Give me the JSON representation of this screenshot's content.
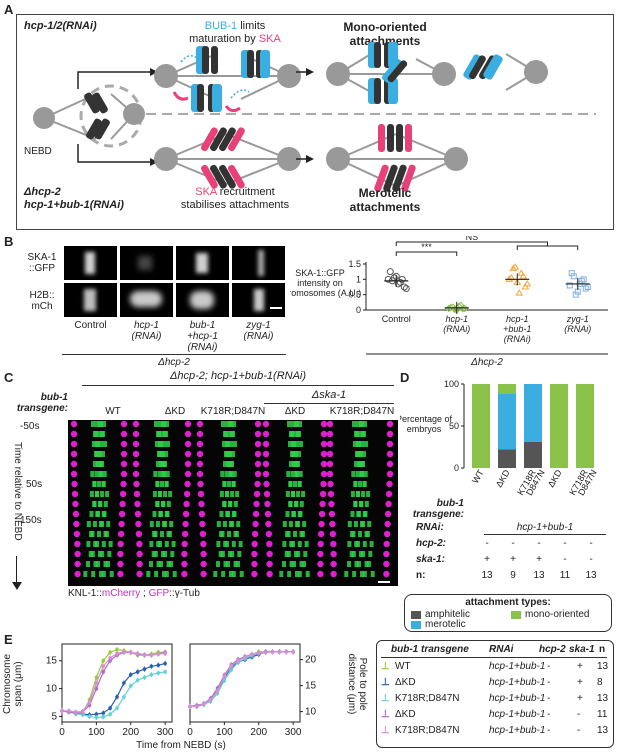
{
  "panelA": {
    "label": "A",
    "top_condition": "hcp-1/2(RNAi)",
    "bub1_prefix": "BUB-1",
    "bub1_rest": " limits",
    "maturation_prefix": "maturation by ",
    "ska_word": "SKA",
    "mono_title": "Mono-oriented\nattachments",
    "nebd": "NEBD",
    "bottom_condition_1": "Δhcp-2",
    "bottom_condition_2": "hcp-1+bub-1(RNAi)",
    "ska_recruit_rest": " recruitment",
    "stabilises": "stabilises attachments",
    "merotelic_title": "Merotelic\nattachments",
    "colors": {
      "blue": "#3aaee0",
      "pink": "#e8407a",
      "gray": "#8c8c8c",
      "dark": "#222222"
    }
  },
  "panelB": {
    "label": "B",
    "row_labels": [
      "SKA-1\n::GFP",
      "H2B::\nmCh"
    ],
    "columns": [
      "Control",
      "hcp-1\n(RNAi)",
      "bub-1\n+hcp-1\n(RNAi)",
      "zyg-1\n(RNAi)"
    ],
    "footer": "Δhcp-2",
    "sig": "***",
    "ns": "NS",
    "chart_data": {
      "type": "scatter",
      "ylabel": "SKA-1::GFP\nintensity on\nchromosomes (A.U.)",
      "ylim": [
        0,
        1.5
      ],
      "yticks": [
        "0",
        "0.5",
        "1",
        "1.5"
      ],
      "categories": [
        "Control",
        "hcp-1\n(RNAi)",
        "hcp-1\n+bub-1\n(RNAi)",
        "zyg-1\n(RNAi)"
      ],
      "series": [
        {
          "color": "#555555",
          "values": [
            1.0,
            0.95,
            1.1,
            0.9,
            0.75,
            1.25,
            1.05,
            0.85,
            1.0,
            0.7
          ],
          "mean": 0.95
        },
        {
          "color": "#8bc34a",
          "values": [
            0.05,
            0.1,
            0.0,
            0.15,
            0.05,
            0.08,
            0.02,
            0.12,
            0.04
          ],
          "mean": 0.07
        },
        {
          "color": "#f2a83b",
          "values": [
            1.0,
            1.35,
            0.9,
            1.2,
            0.75,
            1.05,
            1.4,
            0.55,
            1.1,
            0.85
          ],
          "mean": 1.0
        },
        {
          "color": "#7faee0",
          "values": [
            0.8,
            1.1,
            0.6,
            0.95,
            0.7,
            1.2,
            0.5,
            0.85,
            1.0,
            0.75
          ],
          "mean": 0.85
        }
      ],
      "footer": "Δhcp-2"
    }
  },
  "panelC": {
    "label": "C",
    "top_header": "Δhcp-2; hcp-1+bub-1(RNAi)",
    "ska_header": "Δska-1",
    "transgene_label": "bub-1\ntransgene:",
    "columns": [
      "WT",
      "ΔKD",
      "K718R;D847N",
      "ΔKD",
      "K718R;D847N"
    ],
    "time_axis": "Time relative to NEBD",
    "times": [
      "-50s",
      "50s",
      "150s"
    ],
    "legend_1": "KNL-1::",
    "legend_2": "mCherry",
    "legend_3": " ; ",
    "legend_4": "GFP",
    "legend_5": "::γ-Tub"
  },
  "panelD": {
    "label": "D",
    "chart_data": {
      "type": "bar",
      "ylabel": "Percentage of\nembryos",
      "ylim": [
        0,
        100
      ],
      "yticks": [
        "0",
        "50",
        "100"
      ],
      "categories": [
        "WT",
        "ΔKD",
        "K718R\nD847N",
        "ΔKD",
        "K718R\nD847N"
      ],
      "series": [
        {
          "name": "amphitelic",
          "color": "#555555",
          "values": [
            0,
            22,
            31,
            0,
            0
          ]
        },
        {
          "name": "merotelic",
          "color": "#3aaee0",
          "values": [
            0,
            67,
            69,
            0,
            0
          ]
        },
        {
          "name": "mono-oriented",
          "color": "#8bc34a",
          "values": [
            100,
            11,
            0,
            100,
            100
          ]
        }
      ]
    },
    "transgene_label": "bub-1\ntransgene:",
    "rnai_label": "RNAi:",
    "rnai_value": "hcp-1+bub-1",
    "hcp2_label": "hcp-2:",
    "ska1_label": "ska-1:",
    "n_label": "n:",
    "hcp2_values": [
      "-",
      "-",
      "-",
      "-",
      "-"
    ],
    "ska1_values": [
      "+",
      "+",
      "+",
      "-",
      "-"
    ],
    "n_values": [
      "13",
      "9",
      "13",
      "11",
      "13"
    ],
    "legend_title": "attachment types:",
    "legend_items": [
      "amphitelic",
      "mono-oriented",
      "merotelic"
    ]
  },
  "panelE": {
    "label": "E",
    "chart_data": [
      {
        "type": "line",
        "ylabel": "Chromosome\nspan (μm)",
        "xlabel": "Time from NEBD (s)",
        "xlim": [
          0,
          320
        ],
        "ylim": [
          4,
          18
        ],
        "xticks": [
          "0",
          "100",
          "200",
          "300"
        ],
        "yticks": [
          "5",
          "10",
          "15"
        ],
        "series": [
          {
            "color": "#9acd32",
            "x": [
              0,
              20,
              40,
              60,
              80,
              100,
              120,
              140,
              160,
              180,
              200,
              220,
              240,
              260,
              280,
              300
            ],
            "y": [
              6,
              5.8,
              5.5,
              5.6,
              8,
              12,
              15,
              16.5,
              17,
              16.8,
              16.5,
              16,
              16,
              16.2,
              16.5,
              16.5
            ]
          },
          {
            "color": "#2b5fad",
            "x": [
              0,
              20,
              40,
              60,
              80,
              100,
              120,
              140,
              160,
              180,
              200,
              220,
              240,
              260,
              280,
              300
            ],
            "y": [
              6,
              5.8,
              5.5,
              5.4,
              5.3,
              5.4,
              5.6,
              6.5,
              8.5,
              11,
              12.5,
              13,
              13.5,
              14,
              14.2,
              14.5
            ]
          },
          {
            "color": "#66d0d8",
            "x": [
              0,
              20,
              40,
              60,
              80,
              100,
              120,
              140,
              160,
              180,
              200,
              220,
              240,
              260,
              280,
              300
            ],
            "y": [
              6,
              5.8,
              5.5,
              5.3,
              5.0,
              4.8,
              4.9,
              5.4,
              6.5,
              8.5,
              10.5,
              11.5,
              12,
              12.5,
              12.8,
              13
            ]
          },
          {
            "color": "#b06ac8",
            "x": [
              0,
              20,
              40,
              60,
              80,
              100,
              120,
              140,
              160,
              180,
              200,
              220,
              240,
              260,
              280,
              300
            ],
            "y": [
              6,
              5.8,
              5.7,
              5.8,
              7,
              10,
              13,
              15,
              16,
              16.5,
              16.5,
              16.2,
              16,
              16,
              16.2,
              16.5
            ]
          },
          {
            "color": "#d48fd6",
            "x": [
              0,
              20,
              40,
              60,
              80,
              100,
              120,
              140,
              160,
              180,
              200,
              220,
              240,
              260,
              280,
              300
            ],
            "y": [
              6,
              6,
              5.8,
              5.9,
              7.5,
              11,
              14,
              15.5,
              16.3,
              16.6,
              16.5,
              16.3,
              16.1,
              16,
              16.2,
              16.3
            ]
          }
        ]
      },
      {
        "type": "line",
        "ylabel": "Pole to pole\ndistance (μm)",
        "xlabel": "",
        "xlim": [
          0,
          320
        ],
        "ylim": [
          8,
          23
        ],
        "xticks": [
          "0",
          "100",
          "200",
          "300"
        ],
        "yticks": [
          "10",
          "15",
          "20"
        ],
        "series": [
          {
            "color": "#9acd32",
            "x": [
              0,
              20,
              40,
              60,
              80,
              100,
              120,
              140,
              160,
              180,
              200,
              220,
              240,
              260,
              280,
              300
            ],
            "y": [
              11,
              11,
              11.5,
              12,
              14,
              17,
              19,
              20,
              20.5,
              21,
              21.5,
              21.5,
              21.5,
              21.5,
              21.5,
              21.5
            ]
          },
          {
            "color": "#2b5fad",
            "x": [
              0,
              20,
              40,
              60,
              80,
              100,
              120,
              140,
              160,
              180,
              200,
              220,
              240,
              260,
              280,
              300
            ],
            "y": [
              11,
              11,
              11.5,
              12.5,
              14,
              16.5,
              18.5,
              19.5,
              20,
              20.5,
              21,
              21.5,
              21.5,
              21.5,
              21.5,
              21.5
            ]
          },
          {
            "color": "#66d0d8",
            "x": [
              0,
              20,
              40,
              60,
              80,
              100,
              120,
              140,
              160,
              180,
              200,
              220,
              240,
              260,
              280,
              300
            ],
            "y": [
              11,
              11,
              11.3,
              12,
              13.5,
              16,
              18,
              19.5,
              20.2,
              20.8,
              21.2,
              21.4,
              21.5,
              21.5,
              21.5,
              21.5
            ]
          },
          {
            "color": "#b06ac8",
            "x": [
              0,
              20,
              40,
              60,
              80,
              100,
              120,
              140,
              160,
              180,
              200,
              220,
              240,
              260,
              280,
              300
            ],
            "y": [
              11,
              11.2,
              11.5,
              12.5,
              14.5,
              17,
              19,
              20,
              20.6,
              21,
              21.3,
              21.5,
              21.5,
              21.5,
              21.5,
              21.5
            ]
          },
          {
            "color": "#d48fd6",
            "x": [
              0,
              20,
              40,
              60,
              80,
              100,
              120,
              140,
              160,
              180,
              200,
              220,
              240,
              260,
              280,
              300
            ],
            "y": [
              11,
              11,
              11.5,
              12.3,
              14,
              16.8,
              18.8,
              19.8,
              20.5,
              21,
              21.3,
              21.4,
              21.5,
              21.5,
              21.5,
              21.5
            ]
          }
        ]
      }
    ],
    "table": {
      "headers": [
        "bub-1 transgene",
        "RNAi",
        "hcp-2",
        "ska-1",
        "n"
      ],
      "rows": [
        {
          "label": "WT",
          "rnai": "hcp-1+bub-1",
          "hcp2": "-",
          "ska1": "+",
          "n": "13",
          "color": "#9acd32"
        },
        {
          "label": "ΔKD",
          "rnai": "hcp-1+bub-1",
          "hcp2": "-",
          "ska1": "+",
          "n": "8",
          "color": "#2b5fad"
        },
        {
          "label": "K718R;D847N",
          "rnai": "hcp-1+bub-1",
          "hcp2": "-",
          "ska1": "+",
          "n": "13",
          "color": "#66d0d8"
        },
        {
          "label": "ΔKD",
          "rnai": "hcp-1+bub-1",
          "hcp2": "-",
          "ska1": "-",
          "n": "11",
          "color": "#b06ac8"
        },
        {
          "label": "K718R;D847N",
          "rnai": "hcp-1+bub-1",
          "hcp2": "-",
          "ska1": "-",
          "n": "13",
          "color": "#d48fd6"
        }
      ]
    }
  }
}
